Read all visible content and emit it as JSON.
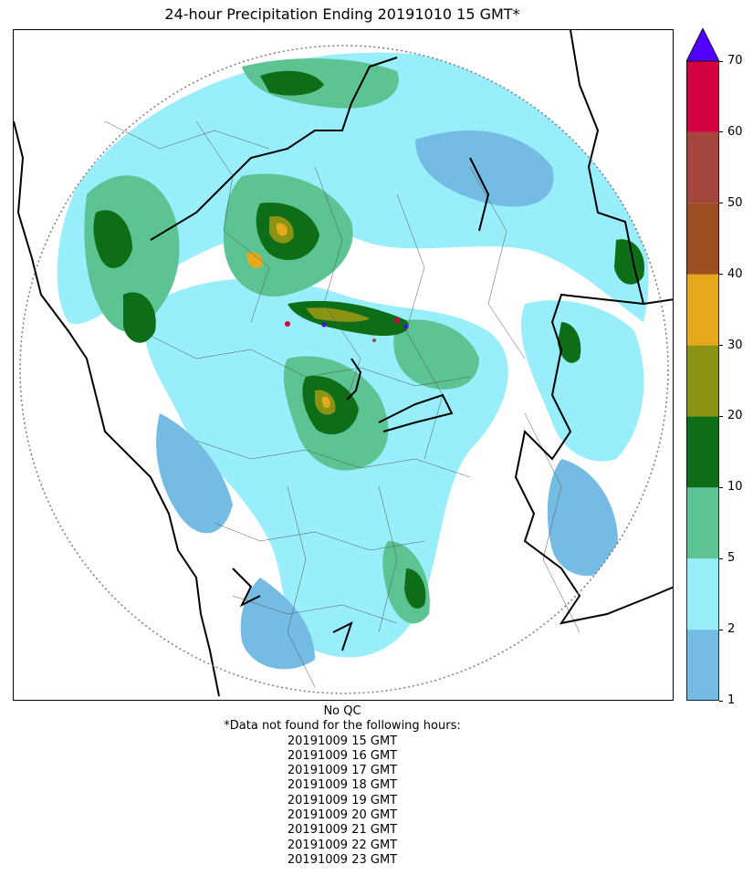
{
  "title": "24-hour Precipitation Ending 20191010 15 GMT*",
  "colorbar": {
    "levels": [
      1,
      2,
      5,
      10,
      20,
      30,
      40,
      50,
      60,
      70
    ],
    "labels": [
      "1",
      "2",
      "5",
      "10",
      "20",
      "30",
      "40",
      "50",
      "60",
      "70"
    ],
    "colors": [
      "#74bce3",
      "#99eefb",
      "#5cc393",
      "#0e6e18",
      "#8a9314",
      "#e6a91c",
      "#9a4e22",
      "#a4463c",
      "#d3013f"
    ],
    "extend_color": "#5100ff",
    "extend": "max"
  },
  "map": {
    "radar_range": "circle",
    "boundaries": [
      "coastline",
      "state borders",
      "district borders"
    ]
  },
  "footer": {
    "qc_note": "No QC",
    "missing_header": "*Data not found for the following hours:",
    "missing_hours": [
      "20191009 15 GMT",
      "20191009 16 GMT",
      "20191009 17 GMT",
      "20191009 18 GMT",
      "20191009 19 GMT",
      "20191009 20 GMT",
      "20191009 21 GMT",
      "20191009 22 GMT",
      "20191009 23 GMT"
    ]
  }
}
